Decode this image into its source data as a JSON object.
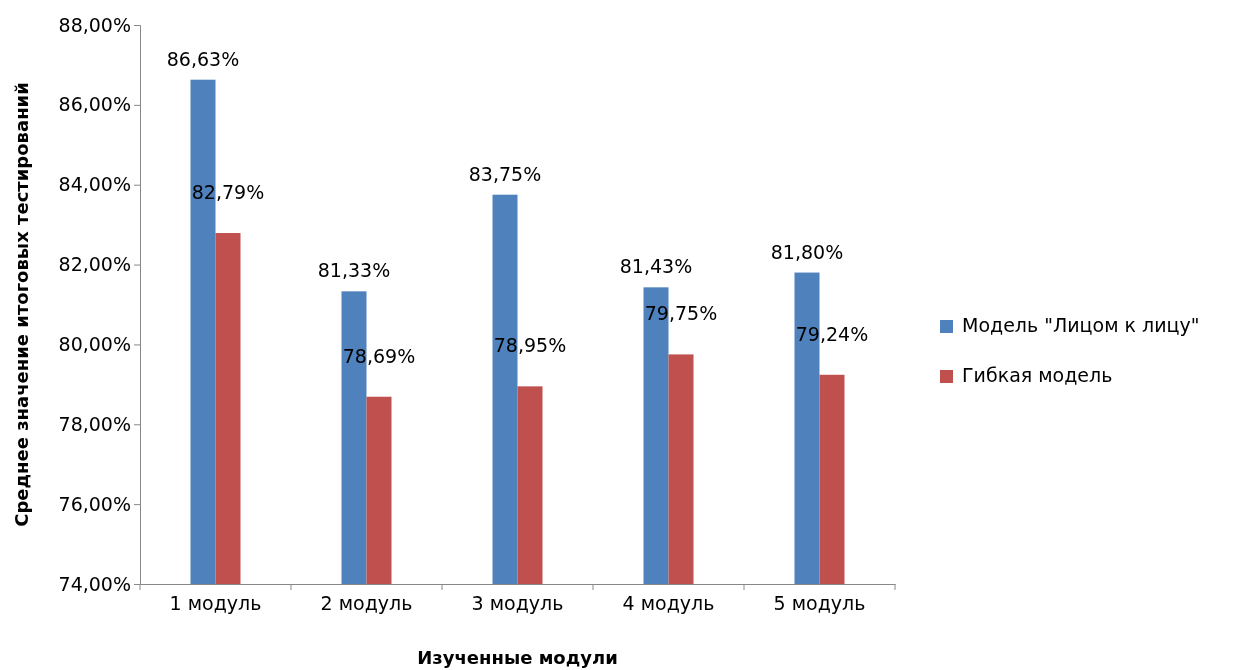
{
  "chart_data": {
    "type": "bar",
    "xlabel": "Изученные модули",
    "ylabel": "Среднее значение итоговых тестирований",
    "categories": [
      "1 модуль",
      "2 модуль",
      "3 модуль",
      "4 модуль",
      "5 модуль"
    ],
    "series": [
      {
        "name": "Модель \"Лицом к лицу\"",
        "color": "#4f81bd",
        "values": [
          86.63,
          81.33,
          83.75,
          81.43,
          81.8
        ],
        "value_labels": [
          "86,63%",
          "81,33%",
          "83,75%",
          "81,43%",
          "81,80%"
        ]
      },
      {
        "name": "Гибкая модель",
        "color": "#c0504d",
        "values": [
          82.79,
          78.69,
          78.95,
          79.75,
          79.24
        ],
        "value_labels": [
          "82,79%",
          "78,69%",
          "78,95%",
          "79,75%",
          "79,24%"
        ]
      }
    ],
    "ylim": [
      74,
      88
    ],
    "yticks": [
      {
        "value": 74,
        "label": "74,00%"
      },
      {
        "value": 76,
        "label": "76,00%"
      },
      {
        "value": 78,
        "label": "78,00%"
      },
      {
        "value": 80,
        "label": "80,00%"
      },
      {
        "value": 82,
        "label": "82,00%"
      },
      {
        "value": 84,
        "label": "84,00%"
      },
      {
        "value": 86,
        "label": "86,00%"
      },
      {
        "value": 88,
        "label": "88,00%"
      }
    ],
    "grid": false,
    "legend": "right"
  }
}
